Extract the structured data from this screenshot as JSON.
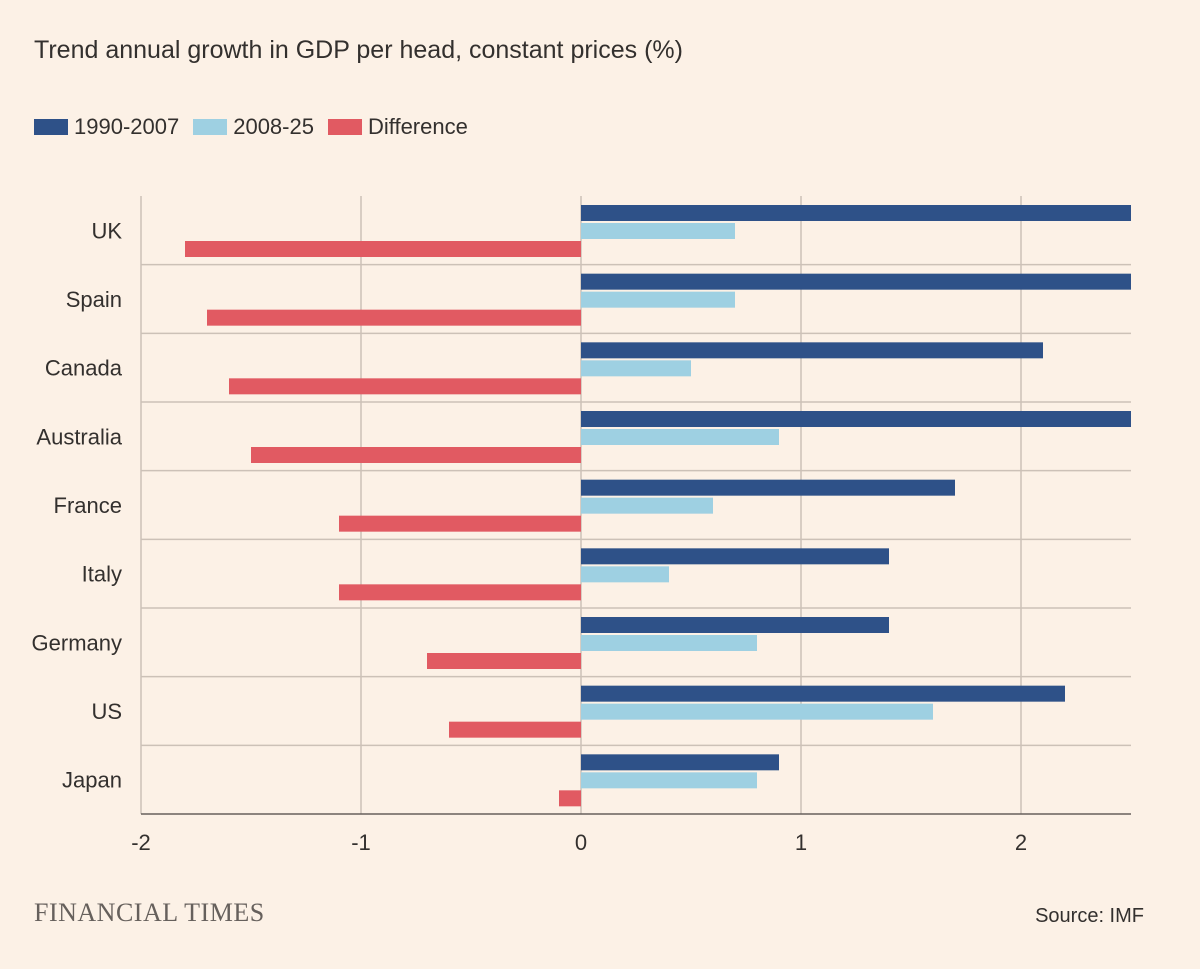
{
  "chart_data": {
    "type": "bar",
    "orientation": "horizontal",
    "title": "Trend annual growth in GDP per head, constant prices (%)",
    "categories": [
      "UK",
      "Spain",
      "Canada",
      "Australia",
      "France",
      "Italy",
      "Germany",
      "US",
      "Japan"
    ],
    "series": [
      {
        "name": "1990-2007",
        "color": "#2e5188",
        "values": [
          2.5,
          2.5,
          2.1,
          2.5,
          1.7,
          1.4,
          1.4,
          2.2,
          0.9
        ]
      },
      {
        "name": "2008-25",
        "color": "#9ed0e2",
        "values": [
          0.7,
          0.7,
          0.5,
          0.9,
          0.6,
          0.4,
          0.8,
          1.6,
          0.8
        ]
      },
      {
        "name": "Difference",
        "color": "#e15a62",
        "values": [
          -1.8,
          -1.7,
          -1.6,
          -1.5,
          -1.1,
          -1.1,
          -0.7,
          -0.6,
          -0.1
        ]
      }
    ],
    "xlim": [
      -2,
      2.5
    ],
    "xticks": [
      -2,
      -1,
      0,
      1,
      2
    ],
    "xtick_labels": [
      "-2",
      "-1",
      "0",
      "1",
      "2"
    ],
    "grid": true,
    "legend_position": "top-left"
  },
  "footer": {
    "brand": "FINANCIAL TIMES",
    "source": "Source: IMF"
  }
}
